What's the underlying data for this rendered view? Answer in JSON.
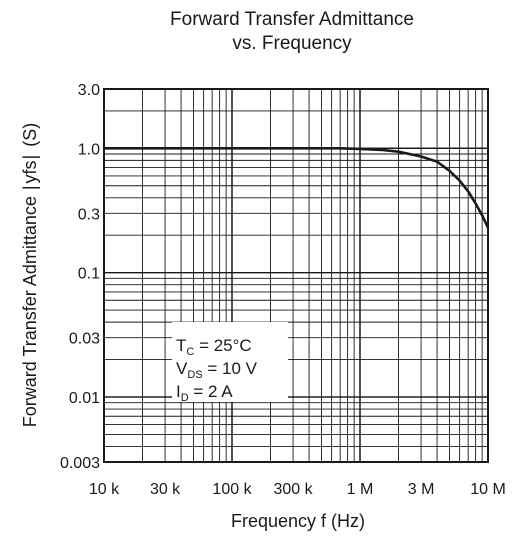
{
  "chart_data": {
    "type": "line",
    "title_line1": "Forward Transfer Admittance",
    "title_line2": "vs. Frequency",
    "xlabel": "Frequency  f  (Hz)",
    "ylabel_prefix": "Forward Transfer Admittance",
    "ylabel_symbol": "yfs",
    "ylabel_unit": "(S)",
    "x_scale": "log",
    "y_scale": "log",
    "xlim": [
      10000,
      10000000
    ],
    "ylim": [
      0.003,
      3.0
    ],
    "grid": true,
    "x_ticks": [
      {
        "value": 10000,
        "label": "10 k"
      },
      {
        "value": 30000,
        "label": "30 k"
      },
      {
        "value": 100000,
        "label": "100 k"
      },
      {
        "value": 300000,
        "label": "300 k"
      },
      {
        "value": 1000000,
        "label": "1 M"
      },
      {
        "value": 3000000,
        "label": "3 M"
      },
      {
        "value": 10000000,
        "label": "10 M"
      }
    ],
    "y_ticks": [
      {
        "value": 3.0,
        "label": "3.0"
      },
      {
        "value": 1.0,
        "label": "1.0"
      },
      {
        "value": 0.3,
        "label": "0.3"
      },
      {
        "value": 0.1,
        "label": "0.1"
      },
      {
        "value": 0.03,
        "label": "0.03"
      },
      {
        "value": 0.01,
        "label": "0.01"
      },
      {
        "value": 0.003,
        "label": "0.003"
      }
    ],
    "conditions": {
      "tc": {
        "main": "T",
        "sub": "C",
        "rest": " = 25°C"
      },
      "vds": {
        "main": "V",
        "sub": "DS",
        "rest": " = 10 V"
      },
      "id": {
        "main": "I",
        "sub": "D",
        "rest": " = 2 A"
      }
    },
    "series": [
      {
        "x": [
          10000,
          30000,
          100000,
          300000,
          700000,
          1000000,
          1500000,
          2000000,
          3000000,
          4000000,
          5000000,
          6000000,
          7000000,
          8000000,
          9000000,
          10000000
        ],
        "y": [
          1.0,
          1.0,
          1.0,
          1.0,
          1.0,
          0.99,
          0.97,
          0.94,
          0.86,
          0.78,
          0.66,
          0.55,
          0.45,
          0.36,
          0.29,
          0.23
        ]
      }
    ]
  }
}
